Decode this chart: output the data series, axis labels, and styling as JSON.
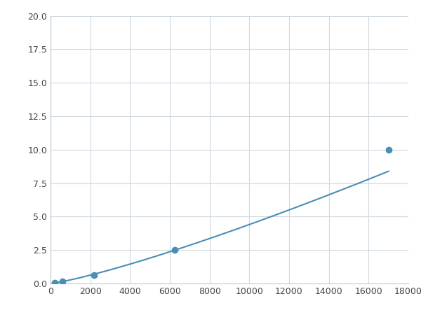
{
  "x": [
    200,
    600,
    1000,
    2200,
    6250,
    17000
  ],
  "y": [
    0.05,
    0.15,
    0.18,
    0.65,
    2.5,
    10.0
  ],
  "line_color": "#4a8db5",
  "marker_color": "#4a8db5",
  "marker_size": 6,
  "xlim": [
    0,
    18000
  ],
  "ylim": [
    0,
    20
  ],
  "xticks": [
    0,
    2000,
    4000,
    6000,
    8000,
    10000,
    12000,
    14000,
    16000,
    18000
  ],
  "yticks": [
    0.0,
    2.5,
    5.0,
    7.5,
    10.0,
    12.5,
    15.0,
    17.5,
    20.0
  ],
  "grid": true,
  "background_color": "#ffffff",
  "fig_width": 6.0,
  "fig_height": 4.5,
  "dpi": 100
}
